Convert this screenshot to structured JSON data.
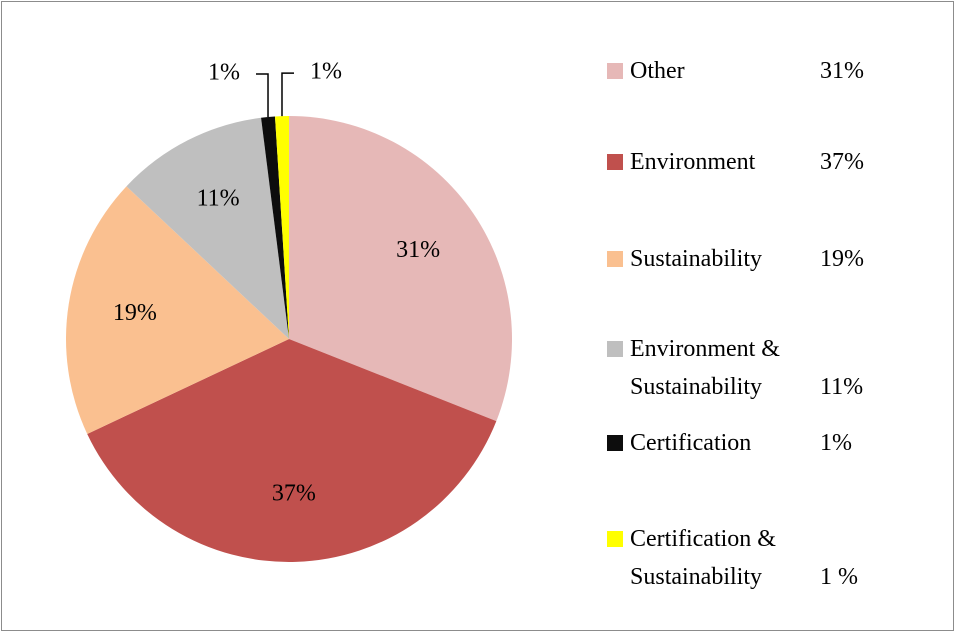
{
  "chart_data": {
    "type": "pie",
    "categories": [
      "Other",
      "Environment",
      "Sustainability",
      "Environment & Sustainability",
      "Certification",
      "Certification & Sustainability"
    ],
    "values": [
      31,
      37,
      19,
      11,
      1,
      1
    ],
    "value_labels": [
      "31%",
      "37%",
      "19%",
      "11%",
      "1%",
      "1%"
    ],
    "legend_value_labels": [
      "31%",
      "37%",
      "19%",
      "11%",
      "1%",
      "1 %"
    ],
    "colors": [
      "#e6b8b7",
      "#c0504d",
      "#fac090",
      "#bfbfbf",
      "#0d0d0d",
      "#ffff00"
    ],
    "legend": "right"
  }
}
